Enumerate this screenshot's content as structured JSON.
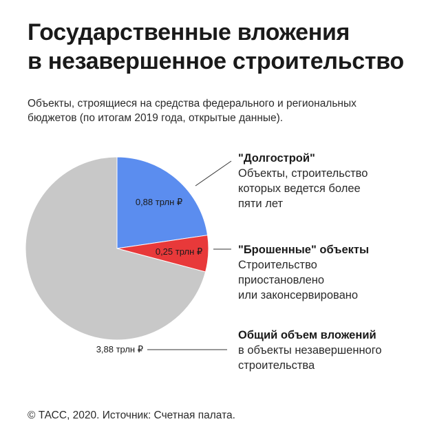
{
  "title_lines": [
    "Государственные вложения",
    "в незавершенное строительство"
  ],
  "subtitle_lines": [
    "Объекты, строящиеся на средства федерального и региональных",
    "бюджетов (по итогам 2019 года, открытые данные)."
  ],
  "legend": [
    {
      "head": "\"Долгострой\"",
      "lines": [
        "Объекты, строительство",
        "которых ведется более",
        "пяти лет"
      ]
    },
    {
      "head": "\"Брошенные\" объекты",
      "lines": [
        "Строительство",
        "приостановлено",
        "или законсервировано"
      ]
    },
    {
      "head": "Общий объем вложений",
      "lines": [
        "в объекты незавершенного",
        "строительства"
      ]
    }
  ],
  "footer": "© ТАСС, 2020. Источник: Счетная палата.",
  "chart_data": {
    "type": "pie",
    "total": {
      "label": "3,88 трлн ₽",
      "value": 3.88
    },
    "slices": [
      {
        "label": "0,88 трлн ₽",
        "value": 0.88,
        "color": "#5b8def"
      },
      {
        "label": "0,25 трлн ₽",
        "value": 0.25,
        "color": "#e8393a"
      },
      {
        "label": "",
        "value": 2.75,
        "color": "#c8c8c8"
      }
    ],
    "start": "12 o'clock",
    "direction": "clockwise"
  },
  "colors": {
    "text": "#1a1a1a",
    "pointer_line": "#333333"
  }
}
